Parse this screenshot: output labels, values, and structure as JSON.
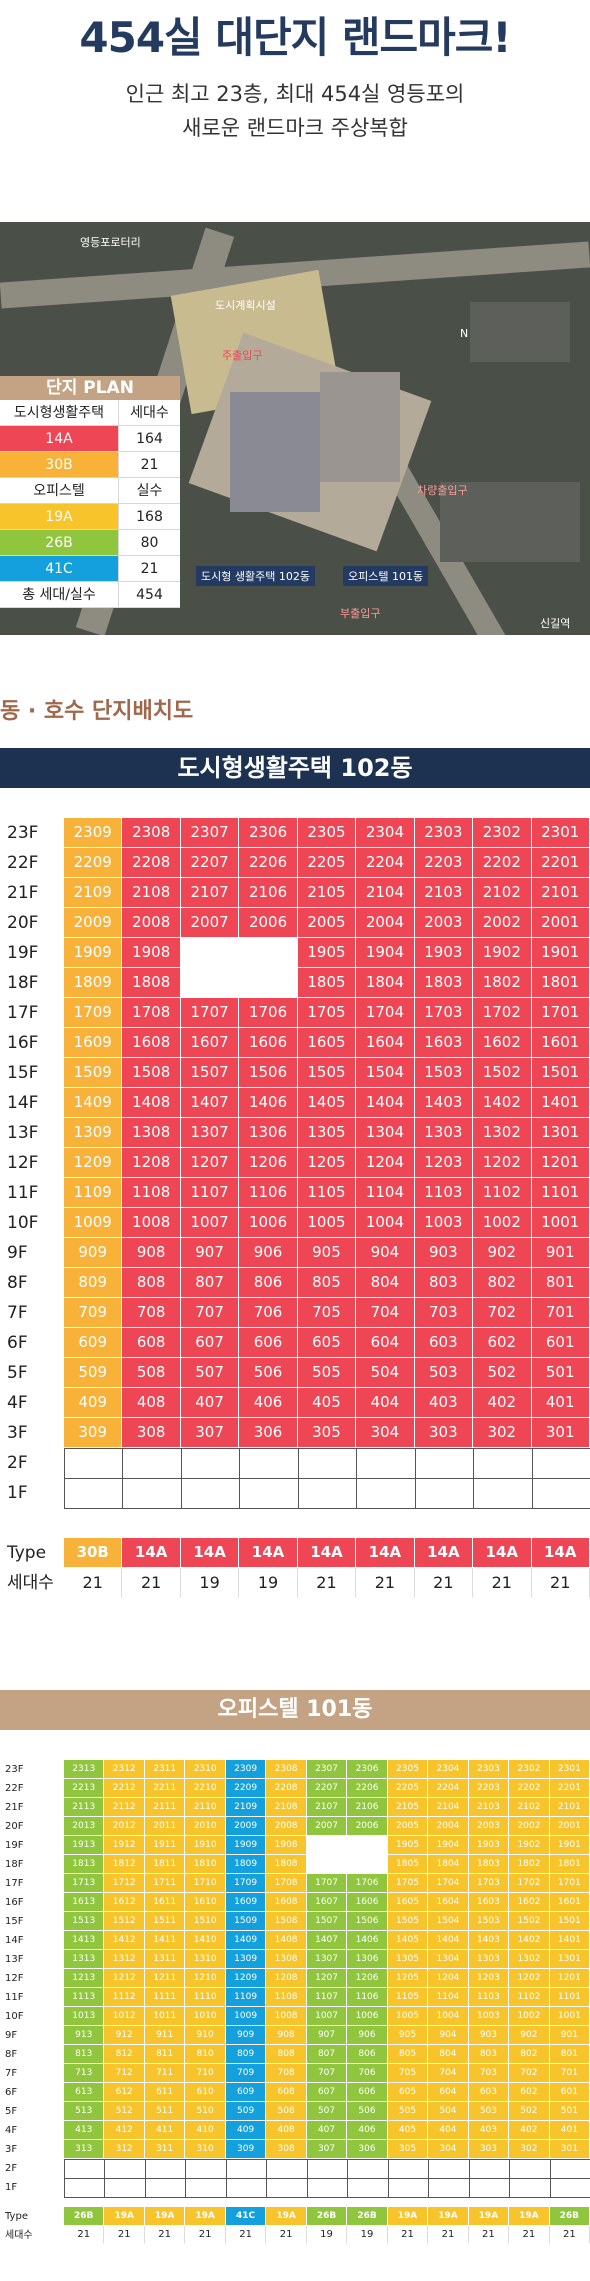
{
  "hero": {
    "title": "454실 대단지 랜드마크!",
    "subtitle_line1": "인근 최고 23층, 최대 454실 영등포의",
    "subtitle_line2": "새로운 랜드마크 주상복합"
  },
  "map": {
    "labels": {
      "yeongdeungpo_rotary": "영등포로터리",
      "urban_facility": "도시계획시설",
      "main_entrance": "주출입구",
      "north": "N",
      "vehicle_entrance": "차량출입구",
      "building_102": "도시형 생활주택 102동",
      "building_101": "오피스텔 101동",
      "sub_entrance": "부출입구",
      "singil_station": "신길역"
    },
    "plan": {
      "title": "단지 PLAN",
      "header": [
        "도시형생활주택",
        "세대수"
      ],
      "rows": [
        {
          "type": "14A",
          "count": "164",
          "color": "#ef4655"
        },
        {
          "type": "30B",
          "count": "21",
          "color": "#f8b23a"
        }
      ],
      "header2": [
        "오피스텔",
        "실수"
      ],
      "rows2": [
        {
          "type": "19A",
          "count": "168",
          "color": "#f8c42c"
        },
        {
          "type": "26B",
          "count": "80",
          "color": "#90c63e"
        },
        {
          "type": "41C",
          "count": "21",
          "color": "#13a0dd"
        }
      ],
      "total": [
        "총 세대/실수",
        "454"
      ]
    }
  },
  "section_title": "동 · 호수 단지배치도",
  "building_102": {
    "title": "도시형생활주택 102동",
    "type_label": "Type",
    "count_label": "세대수",
    "types": [
      "30B",
      "14A",
      "14A",
      "14A",
      "14A",
      "14A",
      "14A",
      "14A",
      "14A"
    ],
    "counts": [
      "21",
      "21",
      "19",
      "19",
      "21",
      "21",
      "21",
      "21",
      "21"
    ],
    "floor_labels": [
      "23F",
      "22F",
      "21F",
      "20F",
      "19F",
      "18F",
      "17F",
      "16F",
      "15F",
      "14F",
      "13F",
      "12F",
      "11F",
      "10F",
      "9F",
      "8F",
      "7F",
      "6F",
      "5F",
      "4F",
      "3F",
      "2F",
      "1F"
    ]
  },
  "building_101": {
    "title": "오피스텔 101동",
    "type_label": "Type",
    "count_label": "세대수",
    "types": [
      "26B",
      "19A",
      "19A",
      "19A",
      "41C",
      "19A",
      "26B",
      "26B",
      "19A",
      "19A",
      "19A",
      "19A",
      "26B"
    ],
    "counts": [
      "21",
      "21",
      "21",
      "21",
      "21",
      "21",
      "19",
      "19",
      "21",
      "21",
      "21",
      "21",
      "21"
    ],
    "floor_labels": [
      "23F",
      "22F",
      "21F",
      "20F",
      "19F",
      "18F",
      "17F",
      "16F",
      "15F",
      "14F",
      "13F",
      "12F",
      "11F",
      "10F",
      "9F",
      "8F",
      "7F",
      "6F",
      "5F",
      "4F",
      "3F",
      "2F",
      "1F"
    ]
  }
}
